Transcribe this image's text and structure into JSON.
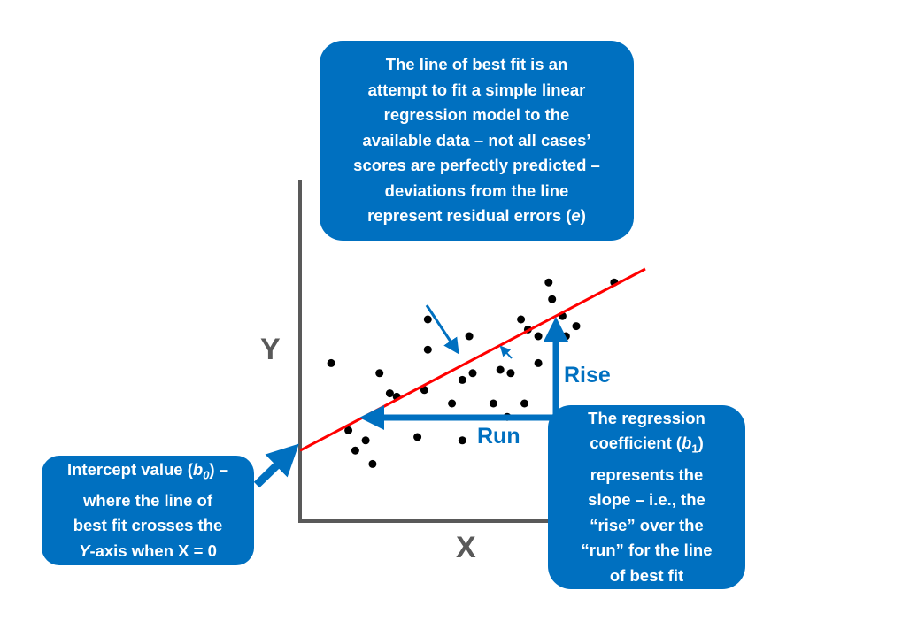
{
  "diagram": {
    "axis_letters": {
      "y": "Y",
      "x": "X"
    },
    "labels": {
      "rise": "Rise",
      "run": "Run"
    },
    "colors": {
      "callout_bg": "#0070c0",
      "arrow": "#0070c0",
      "fit_line": "#ff0000",
      "axis": "#595959",
      "points": "#000000"
    },
    "callouts": {
      "top": {
        "lines": [
          "The line of best fit is an",
          "attempt to fit a simple linear",
          "regression model to the",
          "available data – not all cases’",
          "scores are perfectly predicted –",
          "deviations from the line",
          "represent residual errors ("
        ],
        "last_var": "e",
        "last_tail": ")"
      },
      "left": {
        "line1_a": "Intercept value (",
        "line1_var": "b",
        "line1_sub": "0",
        "line1_b": ") –",
        "line2": "where the line of",
        "line3": "best fit crosses the",
        "line4_var": "Y",
        "line4_rest": "-axis when X = 0"
      },
      "right": {
        "line1": "The regression",
        "line2_a": "coefficient (",
        "line2_var": "b",
        "line2_sub": "1",
        "line2_b": ")",
        "line3": "represents the",
        "line4": "slope – i.e., the",
        "line5": "“rise” over the",
        "line6": "“run” for the line",
        "line7": "of best fit"
      }
    }
  },
  "chart_data": {
    "type": "scatter",
    "xlim": [
      0,
      100
    ],
    "ylim": [
      0,
      100
    ],
    "points": [
      [
        9,
        47
      ],
      [
        14,
        27
      ],
      [
        16,
        21
      ],
      [
        19,
        24
      ],
      [
        21,
        17
      ],
      [
        23,
        44
      ],
      [
        26,
        38
      ],
      [
        28,
        37
      ],
      [
        34,
        25
      ],
      [
        36,
        39
      ],
      [
        37,
        60
      ],
      [
        37,
        51
      ],
      [
        44,
        35
      ],
      [
        47,
        24
      ],
      [
        47,
        42
      ],
      [
        49,
        55
      ],
      [
        50,
        44
      ],
      [
        56,
        35
      ],
      [
        58,
        45
      ],
      [
        60,
        31
      ],
      [
        61,
        44
      ],
      [
        64,
        60
      ],
      [
        65,
        35
      ],
      [
        66,
        57
      ],
      [
        69,
        47
      ],
      [
        69,
        55
      ],
      [
        72,
        71
      ],
      [
        73,
        66
      ],
      [
        76,
        61
      ],
      [
        77,
        55
      ],
      [
        80,
        58
      ],
      [
        91,
        71
      ]
    ],
    "fit_line": {
      "intercept": 21,
      "slope": 0.54,
      "x_range": [
        0,
        100
      ]
    },
    "intercept_value": 21
  }
}
